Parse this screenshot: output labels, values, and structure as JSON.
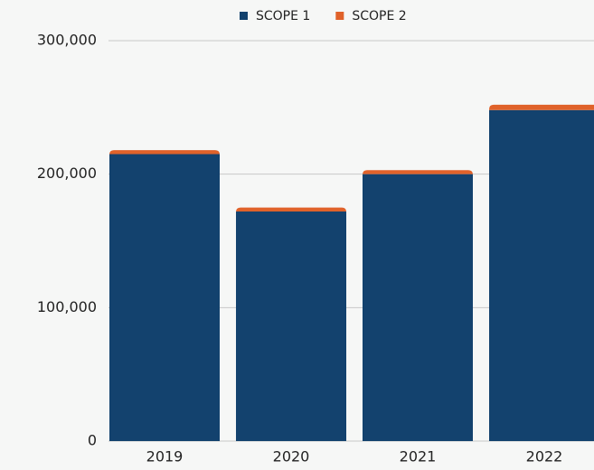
{
  "chart_data": {
    "type": "stacked_bar",
    "categories": [
      "2019",
      "2020",
      "2021",
      "2022"
    ],
    "series": [
      {
        "name": "SCOPE 1",
        "color": "#13426e",
        "values": [
          215000,
          172000,
          200000,
          248000
        ]
      },
      {
        "name": "SCOPE 2",
        "color": "#e0622a",
        "values": [
          3000,
          3000,
          3000,
          4000
        ]
      }
    ],
    "ylim": [
      0,
      300000
    ],
    "yticks": [
      0,
      {
        "value": 100000,
        "label": "100,000"
      },
      {
        "value": 200000,
        "label": "200,000"
      },
      {
        "value": 300000,
        "label": "300,000"
      }
    ],
    "grid": true,
    "legend": "top"
  }
}
